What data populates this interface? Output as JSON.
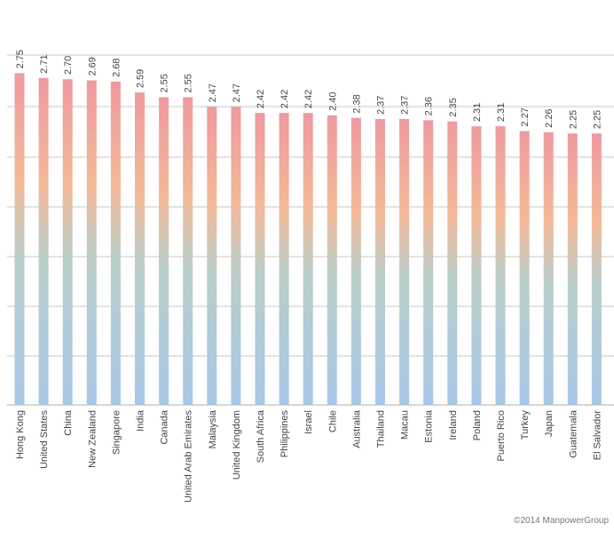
{
  "chart_data": {
    "type": "bar",
    "title": "",
    "xlabel": "",
    "ylabel": "",
    "ylim": [
      0,
      2.9
    ],
    "grid": true,
    "categories": [
      "Hong Kong",
      "United States",
      "China",
      "New Zealand",
      "Singapore",
      "India",
      "Canada",
      "United Arab Emirates",
      "Malaysia",
      "United Kingdom",
      "South Africa",
      "Philippines",
      "Israel",
      "Chile",
      "Australia",
      "Thailand",
      "Macau",
      "Estonia",
      "Ireland",
      "Poland",
      "Puerto Rico",
      "Turkey",
      "Japan",
      "Guatemala",
      "El Salvador"
    ],
    "values": [
      2.75,
      2.71,
      2.7,
      2.69,
      2.68,
      2.59,
      2.55,
      2.55,
      2.47,
      2.47,
      2.42,
      2.42,
      2.42,
      2.4,
      2.38,
      2.37,
      2.37,
      2.36,
      2.35,
      2.31,
      2.31,
      2.27,
      2.26,
      2.25,
      2.25
    ],
    "value_labels": [
      "2.75",
      "2.71",
      "2.70",
      "2.69",
      "2.68",
      "2.59",
      "2.55",
      "2.55",
      "2.47",
      "2.47",
      "2.42",
      "2.42",
      "2.42",
      "2.40",
      "2.38",
      "2.37",
      "2.37",
      "2.36",
      "2.35",
      "2.31",
      "2.31",
      "2.27",
      "2.26",
      "2.25",
      "2.25"
    ],
    "bar_gradient": [
      "#ee9aa0",
      "#f4b896",
      "#b9cdc8",
      "#a8c8e8"
    ],
    "gridline_color": "#c8c8c8"
  },
  "credit": "©2014 ManpowerGroup"
}
